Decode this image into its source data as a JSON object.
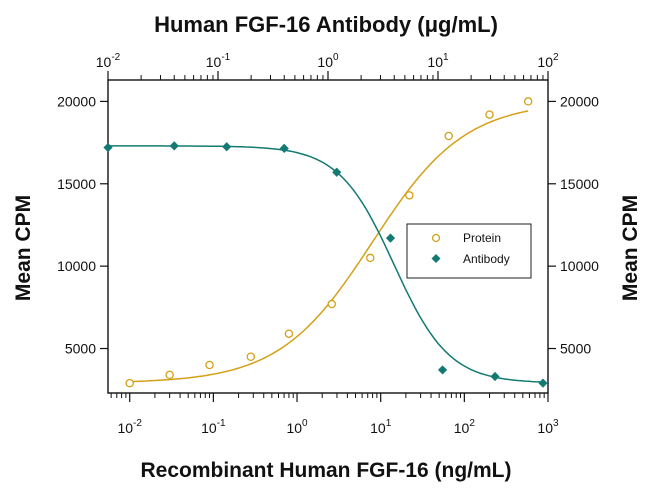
{
  "chart_data": {
    "type": "scatter",
    "title": "Human FGF-16 Antibody (μg/mL)",
    "xlabel": "Recombinant Human FGF-16 (ng/mL)",
    "ylabel_left": "Mean CPM",
    "ylabel_right": "Mean CPM",
    "x_scale": "log",
    "x_bottom_range": [
      0.0055,
      1000
    ],
    "x_top_range": [
      0.01,
      100
    ],
    "ylim": [
      2300,
      21300
    ],
    "y_ticks": [
      5000,
      10000,
      15000,
      20000
    ],
    "y_tick_labels": [
      "5000",
      "10000",
      "15000",
      "20000"
    ],
    "x_bottom_ticks": [
      0.01,
      0.1,
      1,
      10,
      100,
      1000
    ],
    "x_bottom_tick_labels": [
      {
        "base": "10",
        "exp": "-2"
      },
      {
        "base": "10",
        "exp": "-1"
      },
      {
        "base": "10",
        "exp": "0"
      },
      {
        "base": "10",
        "exp": "1"
      },
      {
        "base": "10",
        "exp": "2"
      },
      {
        "base": "10",
        "exp": "3"
      }
    ],
    "x_top_ticks": [
      0.01,
      0.1,
      1,
      10,
      100
    ],
    "x_top_tick_labels": [
      {
        "base": "10",
        "exp": "-2"
      },
      {
        "base": "10",
        "exp": "-1"
      },
      {
        "base": "10",
        "exp": "0"
      },
      {
        "base": "10",
        "exp": "1"
      },
      {
        "base": "10",
        "exp": "2"
      }
    ],
    "legend_position": "right",
    "series": [
      {
        "name": "Protein",
        "axis": "bottom",
        "marker": "open-circle",
        "color": "#d4a017",
        "x": [
          0.01,
          0.03,
          0.09,
          0.28,
          0.8,
          2.6,
          7.5,
          22,
          65,
          200,
          580
        ],
        "y": [
          2900,
          3400,
          4000,
          4500,
          5900,
          7700,
          10500,
          14300,
          17900,
          19200,
          20000
        ]
      },
      {
        "name": "Antibody",
        "axis": "top",
        "marker": "filled-diamond",
        "color": "#127a73",
        "x": [
          0.01,
          0.04,
          0.12,
          0.4,
          1.2,
          3.7,
          11,
          33,
          90
        ],
        "y": [
          17200,
          17300,
          17250,
          17150,
          15700,
          11700,
          3700,
          3300,
          2900
        ]
      }
    ]
  }
}
